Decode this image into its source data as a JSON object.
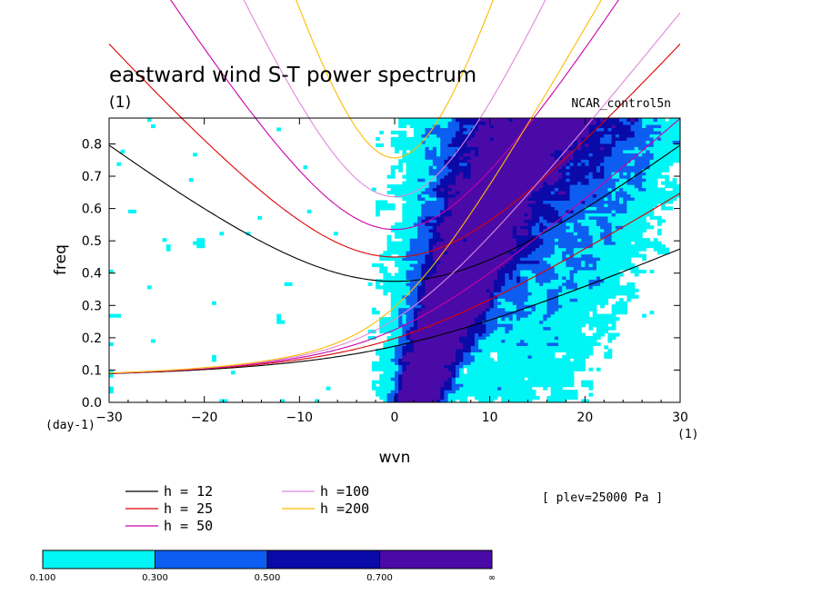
{
  "chart_data": {
    "type": "contour",
    "title": "eastward wind S-T power spectrum",
    "subtitle": "(1)",
    "model_label": "NCAR_control5n",
    "xlabel": "wvn",
    "ylabel": "freq",
    "x_unit": "(1)",
    "y_unit": "(day-1)",
    "xlim": [
      -30,
      30
    ],
    "ylim": [
      0,
      0.88
    ],
    "x_ticks": [
      -30,
      -20,
      -10,
      0,
      10,
      20,
      30
    ],
    "x_tick_labels": [
      "−30",
      "−20",
      "−10",
      "0",
      "10",
      "20",
      "30"
    ],
    "y_ticks": [
      0.0,
      0.1,
      0.2,
      0.3,
      0.4,
      0.5,
      0.6,
      0.7,
      0.8
    ],
    "y_tick_labels": [
      "0.0",
      "0.1",
      "0.2",
      "0.3",
      "0.4",
      "0.5",
      "0.6",
      "0.7",
      "0.8"
    ],
    "annotation": "[ plev=25000 Pa ]",
    "dispersion_curves": [
      {
        "label": "h = 12",
        "h": 12,
        "color": "#000000"
      },
      {
        "label": "h = 25",
        "h": 25,
        "color": "#dd0000"
      },
      {
        "label": "h = 50",
        "h": 50,
        "color": "#cc00aa"
      },
      {
        "label": "h =100",
        "h": 100,
        "color": "#dd88dd"
      },
      {
        "label": "h =200",
        "h": 200,
        "color": "#ffbb00"
      }
    ],
    "colorbar": {
      "levels": [
        "0.100",
        "0.300",
        "0.500",
        "0.700",
        "∞"
      ],
      "colors": [
        "#00f5f5",
        "#0d5ef0",
        "#0a0aa8",
        "#4a0aa8"
      ]
    },
    "power_field": {
      "description_levels": [
        0.1,
        0.3,
        0.5,
        0.7
      ],
      "ridge": "power maximum along wvn 0 to 12, freq 0 to 0.88, strongest near wvn 2-8, freq 0-0.4"
    }
  }
}
